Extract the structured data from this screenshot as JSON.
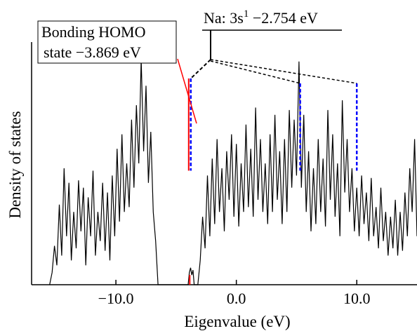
{
  "chart_data": {
    "type": "line",
    "title": "",
    "xlabel": "Eigenvalue (eV)",
    "ylabel": "Density of states",
    "xlim": [
      -17.0,
      15.0
    ],
    "ylim": [
      0,
      1
    ],
    "xticks": [
      -10.0,
      0.0,
      10.0
    ],
    "xtick_labels": [
      "−10.0",
      "0.0",
      "10.0"
    ],
    "yticks": [],
    "grid": false,
    "legend": "none",
    "series": [
      {
        "color": "#000000",
        "points": [
          [
            -15.5,
            0.0
          ],
          [
            -15.3,
            0.05
          ],
          [
            -15.1,
            0.16
          ],
          [
            -14.9,
            0.08
          ],
          [
            -14.7,
            0.33
          ],
          [
            -14.5,
            0.12
          ],
          [
            -14.3,
            0.48
          ],
          [
            -14.1,
            0.2
          ],
          [
            -13.9,
            0.42
          ],
          [
            -13.7,
            0.1
          ],
          [
            -13.5,
            0.3
          ],
          [
            -13.3,
            0.15
          ],
          [
            -13.1,
            0.43
          ],
          [
            -12.9,
            0.22
          ],
          [
            -12.7,
            0.4
          ],
          [
            -12.5,
            0.08
          ],
          [
            -12.3,
            0.36
          ],
          [
            -12.1,
            0.2
          ],
          [
            -11.9,
            0.47
          ],
          [
            -11.7,
            0.12
          ],
          [
            -11.5,
            0.3
          ],
          [
            -11.3,
            0.18
          ],
          [
            -11.1,
            0.42
          ],
          [
            -10.9,
            0.14
          ],
          [
            -10.7,
            0.38
          ],
          [
            -10.5,
            0.1
          ],
          [
            -10.3,
            0.45
          ],
          [
            -10.1,
            0.2
          ],
          [
            -9.9,
            0.56
          ],
          [
            -9.7,
            0.26
          ],
          [
            -9.5,
            0.62
          ],
          [
            -9.3,
            0.3
          ],
          [
            -9.1,
            0.5
          ],
          [
            -8.9,
            0.32
          ],
          [
            -8.7,
            0.68
          ],
          [
            -8.5,
            0.4
          ],
          [
            -8.3,
            0.74
          ],
          [
            -8.1,
            0.5
          ],
          [
            -7.9,
            0.93
          ],
          [
            -7.7,
            0.55
          ],
          [
            -7.5,
            0.82
          ],
          [
            -7.3,
            0.42
          ],
          [
            -7.1,
            0.63
          ],
          [
            -6.9,
            0.3
          ],
          [
            -6.7,
            0.18
          ],
          [
            -6.5,
            0.0
          ],
          [
            -6.3,
            0.0
          ],
          [
            -4.0,
            0.0
          ],
          [
            -3.9,
            0.05
          ],
          [
            -3.8,
            0.07
          ],
          [
            -3.7,
            0.04
          ],
          [
            -3.6,
            0.06
          ],
          [
            -3.5,
            0.0
          ],
          [
            -3.2,
            0.0
          ],
          [
            -3.0,
            0.1
          ],
          [
            -2.8,
            0.28
          ],
          [
            -2.6,
            0.15
          ],
          [
            -2.4,
            0.45
          ],
          [
            -2.2,
            0.2
          ],
          [
            -2.0,
            0.52
          ],
          [
            -1.8,
            0.25
          ],
          [
            -1.6,
            0.6
          ],
          [
            -1.4,
            0.3
          ],
          [
            -1.2,
            0.48
          ],
          [
            -1.0,
            0.22
          ],
          [
            -0.8,
            0.55
          ],
          [
            -0.6,
            0.35
          ],
          [
            -0.4,
            0.62
          ],
          [
            -0.2,
            0.28
          ],
          [
            0.0,
            0.58
          ],
          [
            0.2,
            0.24
          ],
          [
            0.4,
            0.5
          ],
          [
            0.6,
            0.3
          ],
          [
            0.8,
            0.66
          ],
          [
            1.0,
            0.32
          ],
          [
            1.2,
            0.56
          ],
          [
            1.4,
            0.28
          ],
          [
            1.6,
            0.73
          ],
          [
            1.8,
            0.35
          ],
          [
            2.0,
            0.6
          ],
          [
            2.2,
            0.3
          ],
          [
            2.4,
            0.5
          ],
          [
            2.6,
            0.25
          ],
          [
            2.8,
            0.62
          ],
          [
            3.0,
            0.3
          ],
          [
            3.2,
            0.7
          ],
          [
            3.4,
            0.35
          ],
          [
            3.6,
            0.55
          ],
          [
            3.8,
            0.25
          ],
          [
            4.0,
            0.6
          ],
          [
            4.2,
            0.3
          ],
          [
            4.4,
            0.72
          ],
          [
            4.6,
            0.4
          ],
          [
            4.8,
            0.68
          ],
          [
            5.0,
            0.45
          ],
          [
            5.2,
            0.92
          ],
          [
            5.4,
            0.4
          ],
          [
            5.6,
            0.7
          ],
          [
            5.8,
            0.3
          ],
          [
            6.0,
            0.55
          ],
          [
            6.2,
            0.22
          ],
          [
            6.4,
            0.48
          ],
          [
            6.6,
            0.25
          ],
          [
            6.8,
            0.6
          ],
          [
            7.0,
            0.3
          ],
          [
            7.2,
            0.52
          ],
          [
            7.4,
            0.24
          ],
          [
            7.6,
            0.72
          ],
          [
            7.8,
            0.35
          ],
          [
            8.0,
            0.62
          ],
          [
            8.2,
            0.28
          ],
          [
            8.4,
            0.5
          ],
          [
            8.6,
            0.2
          ],
          [
            8.8,
            0.76
          ],
          [
            9.0,
            0.38
          ],
          [
            9.2,
            0.6
          ],
          [
            9.4,
            0.3
          ],
          [
            9.6,
            0.48
          ],
          [
            9.8,
            0.22
          ],
          [
            10.0,
            0.4
          ],
          [
            10.2,
            0.2
          ],
          [
            10.4,
            0.45
          ],
          [
            10.6,
            0.25
          ],
          [
            10.8,
            0.38
          ],
          [
            11.0,
            0.18
          ],
          [
            11.2,
            0.44
          ],
          [
            11.4,
            0.2
          ],
          [
            11.6,
            0.32
          ],
          [
            11.8,
            0.15
          ],
          [
            12.0,
            0.4
          ],
          [
            12.2,
            0.18
          ],
          [
            12.4,
            0.3
          ],
          [
            12.6,
            0.12
          ],
          [
            12.8,
            0.28
          ],
          [
            13.0,
            0.15
          ],
          [
            13.2,
            0.35
          ],
          [
            13.4,
            0.12
          ],
          [
            13.6,
            0.3
          ],
          [
            13.8,
            0.14
          ],
          [
            14.0,
            0.38
          ],
          [
            14.2,
            0.2
          ],
          [
            14.4,
            0.48
          ],
          [
            14.6,
            0.3
          ],
          [
            14.8,
            0.6
          ],
          [
            15.0,
            0.2
          ]
        ]
      }
    ],
    "markers": [
      {
        "x": -3.869,
        "y_top": 0.85,
        "y_bottom": 0.47,
        "color": "#ff0000",
        "style": "solid"
      },
      {
        "x": -3.869,
        "y_top": 0.85,
        "y_bottom": 0.47,
        "color": "#0000ff",
        "style": "dashed"
      },
      {
        "x": 5.3,
        "y_top": 0.83,
        "y_bottom": 0.47,
        "color": "#0000ff",
        "style": "dashed"
      },
      {
        "x": 10.0,
        "y_top": 0.83,
        "y_bottom": 0.47,
        "color": "#0000ff",
        "style": "dashed"
      },
      {
        "x": -3.869,
        "y_top": 0.04,
        "y_bottom": 0.0,
        "color": "#ff0000",
        "style": "solid"
      }
    ],
    "annotations": [
      {
        "text": "Bonding HOMO",
        "text2": "state −3.869 eV",
        "x": -3.869,
        "boxed": true,
        "pointer_color": "#ff0000"
      },
      {
        "text": "Na: 3s",
        "sup": "1",
        "text2": " −2.754 eV",
        "x": -2.754,
        "underlined": true
      }
    ]
  }
}
